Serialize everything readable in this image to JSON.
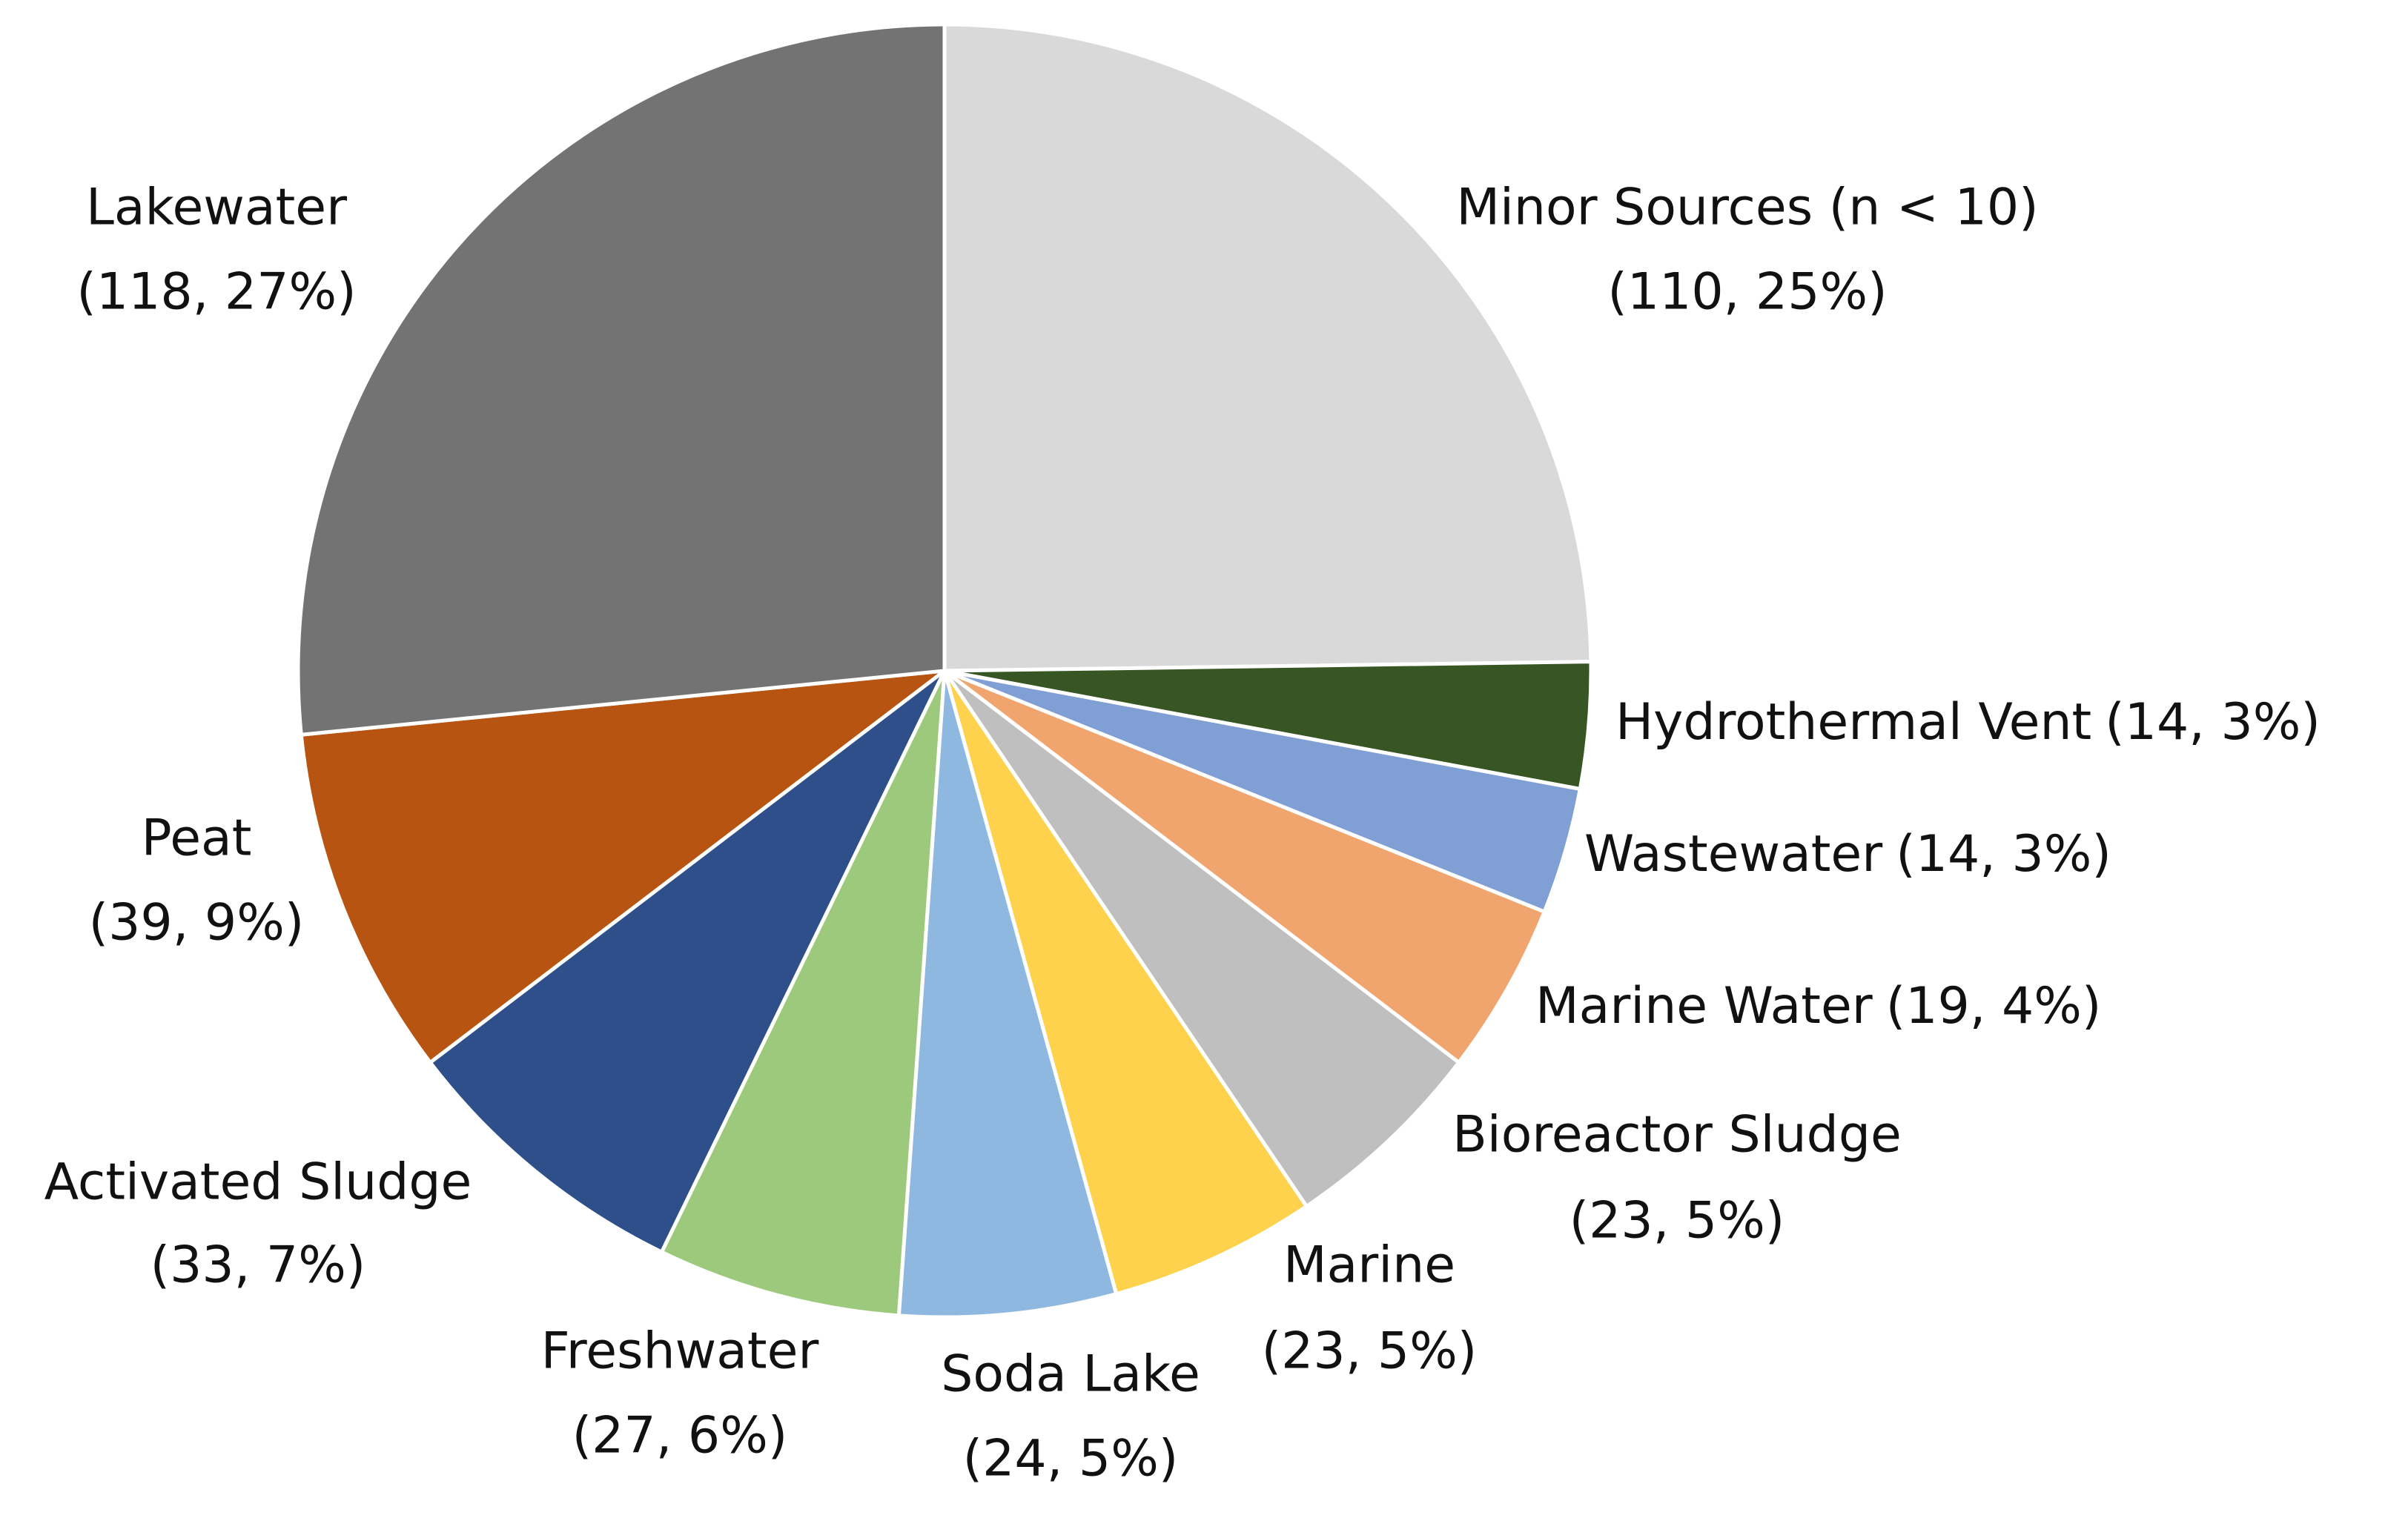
{
  "chart_data": {
    "type": "pie",
    "categories": [
      "Minor Sources (n < 10)",
      "Hydrothermal Vent",
      "Wastewater",
      "Marine Water",
      "Bioreactor Sludge",
      "Marine",
      "Soda Lake",
      "Freshwater",
      "Activated Sludge",
      "Peat",
      "Lakewater"
    ],
    "values": [
      110,
      14,
      14,
      19,
      23,
      23,
      24,
      27,
      33,
      39,
      118
    ],
    "value_labels": [
      "(110, 25%)",
      "(14, 3%)",
      "(14, 3%)",
      "(19, 4%)",
      "(23, 5%)",
      "(23, 5%)",
      "(24, 5%)",
      "(27, 6%)",
      "(33, 7%)",
      "(39, 9%)",
      "(118, 27%)"
    ],
    "colors": [
      "#d9d9d9",
      "#375623",
      "#7f9fd5",
      "#f0a46e",
      "#bfbfbf",
      "#ffd24d",
      "#8fb8e0",
      "#9dc97d",
      "#2e4f8a",
      "#b85412",
      "#737373"
    ]
  }
}
